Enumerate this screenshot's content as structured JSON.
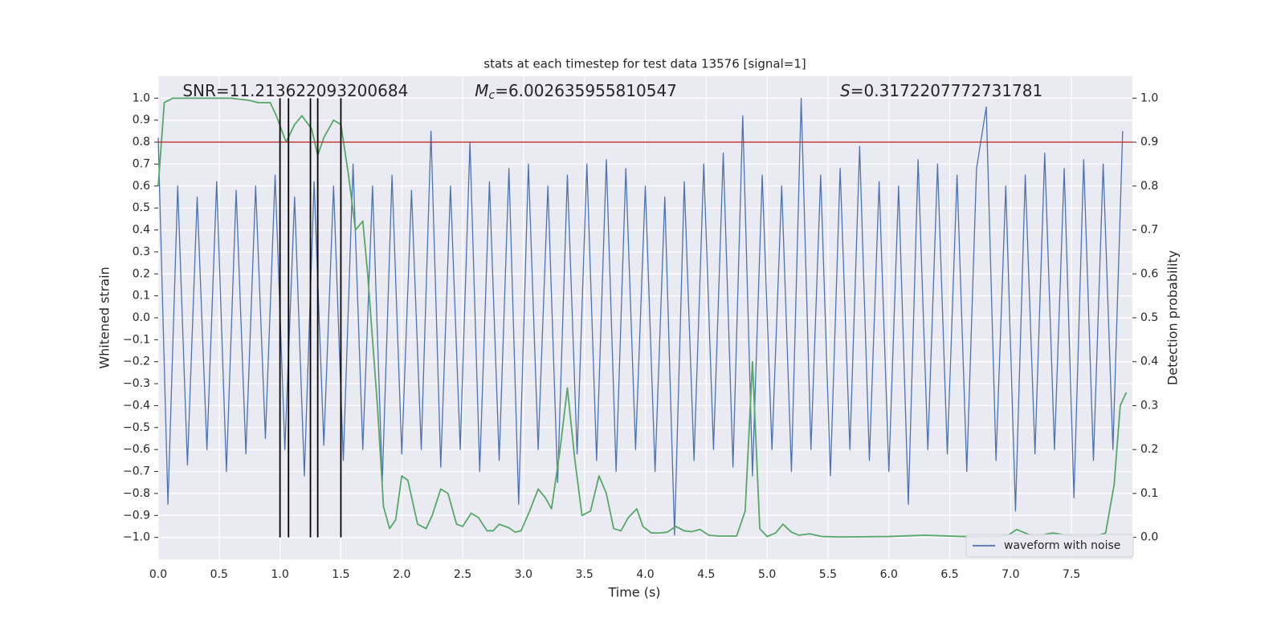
{
  "chart_data": {
    "type": "line",
    "title": "stats at each timestep for test data 13576 [signal=1]",
    "xlabel": "Time (s)",
    "ylabel": "Whitened strain",
    "y2label": "Detection probability",
    "annotations": [
      {
        "text": "SNR=11.213622093200684",
        "x": 0.2,
        "y": 1.03
      },
      {
        "symbol": "M",
        "sub": "c",
        "text": "=6.002635955810547",
        "x": 2.6,
        "y": 1.03
      },
      {
        "symbol": "S",
        "text": "=0.3172207772731781",
        "x": 5.6,
        "y": 1.03
      }
    ],
    "xlim": [
      0,
      8.0
    ],
    "ylim": [
      -1.1,
      1.1
    ],
    "y2lim": [
      -0.05,
      1.05
    ],
    "xticks": [
      {
        "value": 0,
        "label": "0.0"
      },
      0.5,
      {
        "value": 1,
        "label": "1.0"
      },
      1.5,
      {
        "value": 2,
        "label": "2.0"
      },
      2.5,
      {
        "value": 3,
        "label": "3.0"
      },
      3.5,
      {
        "value": 4,
        "label": "4.0"
      },
      4.5,
      {
        "value": 5,
        "label": "5.0"
      },
      5.5,
      {
        "value": 6,
        "label": "6.0"
      },
      6.5,
      {
        "value": 7,
        "label": "7.0"
      },
      7.5
    ],
    "yticks": [
      {
        "value": -1,
        "label": "−1.0"
      },
      {
        "value": -0.9,
        "label": "−0.9"
      },
      {
        "value": -0.8,
        "label": "−0.8"
      },
      {
        "value": -0.7,
        "label": "−0.7"
      },
      {
        "value": -0.6,
        "label": "−0.6"
      },
      {
        "value": -0.5,
        "label": "−0.5"
      },
      {
        "value": -0.4,
        "label": "−0.4"
      },
      {
        "value": -0.3,
        "label": "−0.3"
      },
      {
        "value": -0.2,
        "label": "−0.2"
      },
      {
        "value": -0.1,
        "label": "−0.1"
      },
      {
        "value": 0,
        "label": "0.0"
      },
      0.1,
      0.2,
      0.3,
      0.4,
      0.5,
      0.6,
      0.7,
      0.8,
      0.9,
      {
        "value": 1,
        "label": "1.0"
      }
    ],
    "y2ticks": [
      {
        "value": 0,
        "label": "0.0"
      },
      0.1,
      0.2,
      0.3,
      0.4,
      0.5,
      0.6,
      0.7,
      0.8,
      0.9,
      {
        "value": 1,
        "label": "1.0"
      }
    ],
    "grid": true,
    "legend": "lower right",
    "hline": {
      "y": 0.8,
      "color": "#c03d3e"
    },
    "vlines": {
      "x": [
        1.0,
        1.07,
        1.25,
        1.31,
        1.5
      ],
      "ymin": -1,
      "ymax": 1,
      "color": "#000000"
    },
    "series": [
      {
        "name": "waveform with noise",
        "color": "#4c72b0",
        "x": [
          0,
          0.08,
          0.16,
          0.24,
          0.32,
          0.4,
          0.48,
          0.56,
          0.64,
          0.72,
          0.8,
          0.88,
          0.96,
          1.04,
          1.12,
          1.2,
          1.28,
          1.36,
          1.44,
          1.52,
          1.6,
          1.68,
          1.76,
          1.84,
          1.92,
          2,
          2.08,
          2.16,
          2.24,
          2.32,
          2.4,
          2.48,
          2.56,
          2.64,
          2.72,
          2.8,
          2.88,
          2.96,
          3.04,
          3.12,
          3.2,
          3.28,
          3.36,
          3.44,
          3.52,
          3.6,
          3.68,
          3.76,
          3.84,
          3.92,
          4,
          4.08,
          4.16,
          4.24,
          4.32,
          4.4,
          4.48,
          4.56,
          4.64,
          4.72,
          4.8,
          4.88,
          4.96,
          5.04,
          5.12,
          5.2,
          5.28,
          5.36,
          5.44,
          5.52,
          5.6,
          5.68,
          5.76,
          5.84,
          5.92,
          6,
          6.08,
          6.16,
          6.24,
          6.32,
          6.4,
          6.48,
          6.56,
          6.64,
          6.72,
          6.8,
          6.88,
          6.96,
          7.04,
          7.12,
          7.2,
          7.28,
          7.36,
          7.44,
          7.52,
          7.6,
          7.68,
          7.76,
          7.84,
          7.92
        ],
        "values": [
          0.82,
          -0.85,
          0.6,
          -0.67,
          0.55,
          -0.6,
          0.62,
          -0.7,
          0.58,
          -0.62,
          0.6,
          -0.55,
          0.65,
          -0.6,
          0.55,
          -0.72,
          0.62,
          -0.58,
          0.6,
          -0.65,
          0.7,
          -0.6,
          0.6,
          -0.75,
          0.65,
          -0.62,
          0.58,
          -0.6,
          0.85,
          -0.68,
          0.6,
          -0.6,
          0.8,
          -0.7,
          0.62,
          -0.65,
          0.68,
          -0.85,
          0.7,
          -0.6,
          0.6,
          -0.75,
          0.65,
          -0.62,
          0.7,
          -0.65,
          0.72,
          -0.7,
          0.68,
          -0.6,
          0.6,
          -0.7,
          0.55,
          -0.99,
          0.62,
          -0.65,
          0.7,
          -0.6,
          0.75,
          -0.68,
          0.92,
          -0.72,
          0.65,
          -0.6,
          0.6,
          -0.7,
          1.0,
          -0.6,
          0.65,
          -0.72,
          0.68,
          -0.6,
          0.78,
          -0.65,
          0.62,
          -0.7,
          0.6,
          -0.85,
          0.72,
          -0.6,
          0.7,
          -0.62,
          0.65,
          -0.7,
          0.68,
          0.96,
          -0.65,
          0.6,
          -0.88,
          0.65,
          -0.62,
          0.75,
          -0.6,
          0.68,
          -0.82,
          0.72,
          -0.65,
          0.7,
          -0.6,
          0.85
        ]
      },
      {
        "color": "#55a868",
        "axis": "y2",
        "x": [
          0,
          0.05,
          0.12,
          0.6,
          0.75,
          0.82,
          0.92,
          0.97,
          1.05,
          1.12,
          1.18,
          1.26,
          1.31,
          1.36,
          1.44,
          1.5,
          1.56,
          1.62,
          1.68,
          1.72,
          1.8,
          1.85,
          1.9,
          1.95,
          2,
          2.05,
          2.13,
          2.2,
          2.25,
          2.32,
          2.38,
          2.45,
          2.5,
          2.57,
          2.63,
          2.7,
          2.75,
          2.8,
          2.88,
          2.93,
          2.98,
          3.05,
          3.12,
          3.18,
          3.23,
          3.3,
          3.36,
          3.42,
          3.48,
          3.55,
          3.62,
          3.68,
          3.74,
          3.8,
          3.86,
          3.93,
          3.98,
          4.05,
          4.12,
          4.18,
          4.25,
          4.32,
          4.38,
          4.45,
          4.52,
          4.6,
          4.75,
          4.82,
          4.88,
          4.94,
          5,
          5.07,
          5.13,
          5.2,
          5.26,
          5.35,
          5.45,
          5.6,
          6,
          6.3,
          6.6,
          6.9,
          6.98,
          7.05,
          7.12,
          7.18,
          7.25,
          7.3,
          7.35,
          7.45,
          7.55,
          7.7,
          7.78,
          7.85,
          7.9,
          7.95
        ],
        "values": [
          0.8,
          0.99,
          1.0,
          1.0,
          0.995,
          0.99,
          0.99,
          0.96,
          0.9,
          0.94,
          0.96,
          0.93,
          0.87,
          0.91,
          0.95,
          0.94,
          0.83,
          0.7,
          0.72,
          0.6,
          0.3,
          0.07,
          0.02,
          0.04,
          0.14,
          0.13,
          0.03,
          0.02,
          0.05,
          0.11,
          0.1,
          0.03,
          0.025,
          0.055,
          0.045,
          0.015,
          0.015,
          0.03,
          0.022,
          0.012,
          0.015,
          0.06,
          0.11,
          0.09,
          0.065,
          0.2,
          0.34,
          0.18,
          0.05,
          0.06,
          0.14,
          0.1,
          0.02,
          0.015,
          0.045,
          0.065,
          0.025,
          0.01,
          0.01,
          0.012,
          0.025,
          0.015,
          0.013,
          0.018,
          0.005,
          0.003,
          0.003,
          0.06,
          0.4,
          0.02,
          0.002,
          0.01,
          0.03,
          0.012,
          0.005,
          0.008,
          0.002,
          0.001,
          0.002,
          0.005,
          0.002,
          0.002,
          0.005,
          0.018,
          0.01,
          0.003,
          0.004,
          0.008,
          0.01,
          0.005,
          0.002,
          0.003,
          0.01,
          0.12,
          0.3,
          0.33
        ]
      }
    ]
  }
}
